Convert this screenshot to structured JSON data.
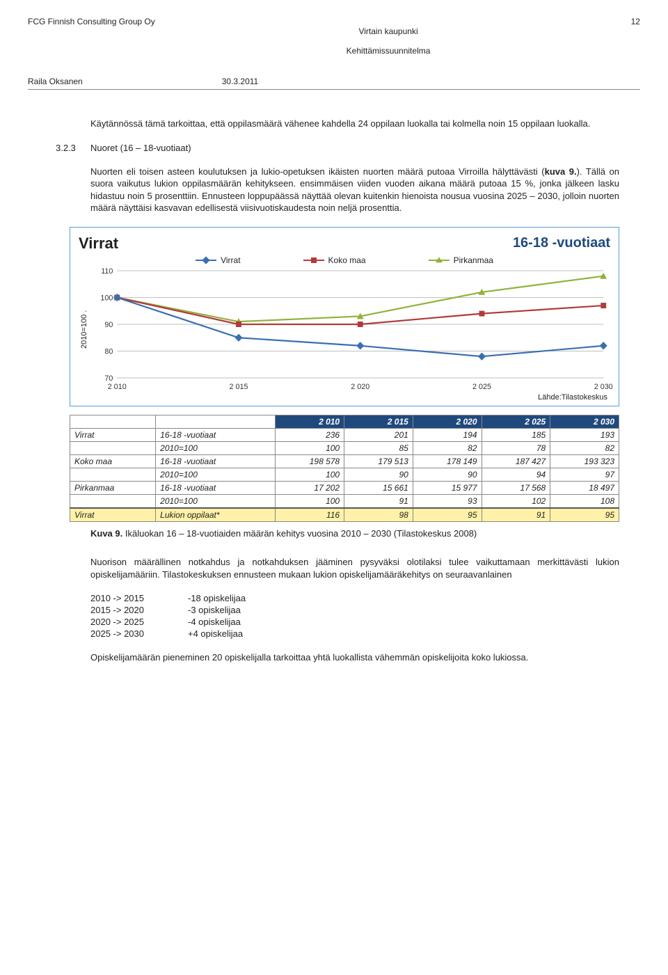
{
  "header": {
    "left": "FCG Finnish Consulting Group Oy",
    "center_line1": "Virtain kaupunki",
    "center_line2": "Kehittämissuunnitelma",
    "page": "12",
    "author": "Raila Oksanen",
    "date": "30.3.2011"
  },
  "para1": "Käytännössä tämä tarkoittaa, että oppilasmäärä vähenee kahdella 24 oppilaan luokalla tai kolmella noin 15 oppilaan luokalla.",
  "section": {
    "num": "3.2.3",
    "title": "Nuoret (16 – 18-vuotiaat)"
  },
  "para2a": "Nuorten eli toisen asteen koulutuksen ja lukio-opetuksen ikäisten nuorten määrä putoaa Virroilla hälyttävästi (",
  "para2b": "kuva 9.",
  "para2c": "). Tällä on suora vaikutus lukion oppilasmäärän kehitykseen. ensimmäisen viiden vuoden aikana määrä putoaa 15 %, jonka jälkeen lasku hidastuu noin 5 prosenttiin. Ennusteen loppupäässä näyttää olevan kuitenkin hienoista nousua vuosina 2025 – 2030, jolloin nuorten määrä näyttäisi kasvavan edellisestä viisivuotiskaudesta noin neljä prosenttia.",
  "chart": {
    "title_left": "Virrat",
    "title_right": "16-18 -vuotiaat",
    "legend": {
      "virrat": "Virrat",
      "koko": "Koko maa",
      "pirkanmaa": "Pirkanmaa"
    },
    "yaxis_label": "2010=100 .",
    "source": "Lähde:Tilastokeskus",
    "yticks": [
      70,
      80,
      90,
      100,
      110
    ],
    "xticks": [
      "2 010",
      "2 015",
      "2 020",
      "2 025",
      "2 030"
    ],
    "ylim": [
      70,
      110
    ],
    "series": {
      "virrat": {
        "color": "#3a6fb0",
        "values": [
          100,
          85,
          82,
          78,
          82
        ],
        "marker": "diamond"
      },
      "koko": {
        "color": "#b23a3a",
        "values": [
          100,
          90,
          90,
          94,
          97
        ],
        "marker": "square"
      },
      "pirkanmaa": {
        "color": "#8fb23a",
        "values": [
          100,
          91,
          93,
          102,
          108
        ],
        "marker": "triangle"
      }
    }
  },
  "table": {
    "years": [
      "2 010",
      "2 015",
      "2 020",
      "2 025",
      "2 030"
    ],
    "rows": [
      {
        "group": "Virrat",
        "label": "16-18 -vuotiaat",
        "vals": [
          "236",
          "201",
          "194",
          "185",
          "193"
        ]
      },
      {
        "group": "",
        "label": "2010=100",
        "vals": [
          "100",
          "85",
          "82",
          "78",
          "82"
        ]
      },
      {
        "group": "Koko maa",
        "label": "16-18 -vuotiaat",
        "vals": [
          "198 578",
          "179 513",
          "178 149",
          "187 427",
          "193 323"
        ]
      },
      {
        "group": "",
        "label": "2010=100",
        "vals": [
          "100",
          "90",
          "90",
          "94",
          "97"
        ]
      },
      {
        "group": "Pirkanmaa",
        "label": "16-18 -vuotiaat",
        "vals": [
          "17 202",
          "15 661",
          "15 977",
          "17 568",
          "18 497"
        ]
      },
      {
        "group": "",
        "label": "2010=100",
        "vals": [
          "100",
          "91",
          "93",
          "102",
          "108"
        ]
      }
    ],
    "highlight": {
      "group": "Virrat",
      "label": "Lukion oppilaat*",
      "vals": [
        "116",
        "98",
        "95",
        "91",
        "95"
      ]
    }
  },
  "caption": {
    "bold": "Kuva 9.",
    "rest": " Ikäluokan 16 – 18-vuotiaiden määrän kehitys vuosina 2010 – 2030 (Tilastokeskus 2008)"
  },
  "para3": "Nuorison määrällinen notkahdus ja notkahduksen jääminen pysyväksi olotilaksi tulee vaikuttamaan merkittävästi lukion opiskelijamääriin. Tilastokeskuksen ennusteen mukaan lukion opiskelijamääräkehitys on seuraavanlainen",
  "changes": [
    {
      "range": "2010 -> 2015",
      "delta": "-18 opiskelijaa"
    },
    {
      "range": "2015 -> 2020",
      "delta": "-3 opiskelijaa"
    },
    {
      "range": "2020 -> 2025",
      "delta": "-4 opiskelijaa"
    },
    {
      "range": "2025 -> 2030",
      "delta": "+4 opiskelijaa"
    }
  ],
  "para4": "Opiskelijamäärän pieneminen 20 opiskelijalla tarkoittaa yhtä luokallista vähemmän opiskelijoita koko lukiossa."
}
